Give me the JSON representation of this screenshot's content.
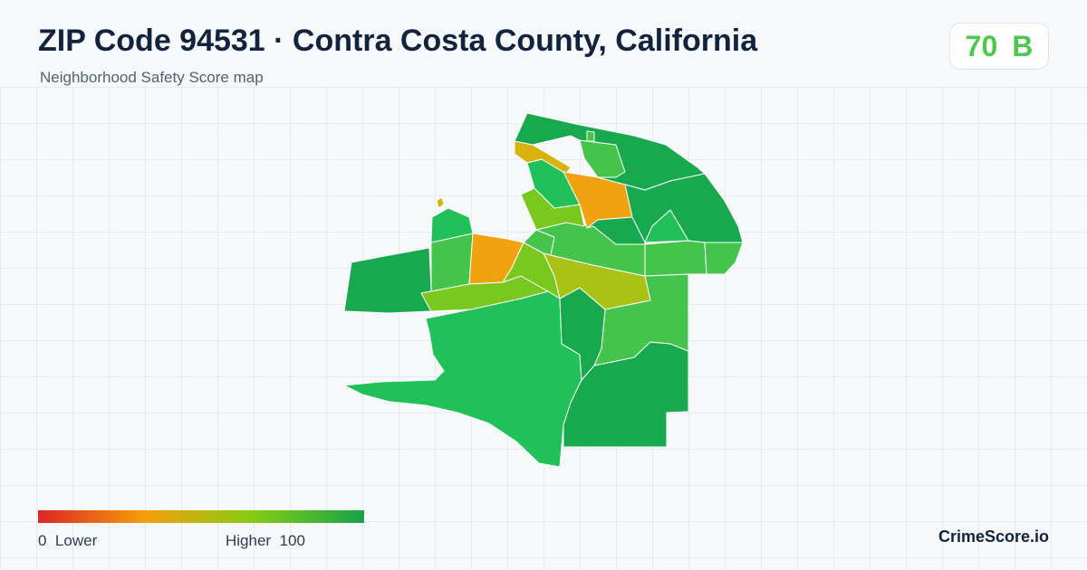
{
  "header": {
    "title": "ZIP Code 94531 · Contra Costa County, California",
    "subtitle": "Neighborhood Safety Score map"
  },
  "score": {
    "value": "70",
    "grade": "B",
    "color": "#4cc94c"
  },
  "legend": {
    "low_value": "0",
    "low_label": "Lower",
    "high_label": "Higher",
    "high_value": "100",
    "colors": [
      "#dc2626",
      "#f59e0b",
      "#84cc16",
      "#16a34a"
    ]
  },
  "footer": {
    "brand": "CrimeScore.io"
  },
  "palette": {
    "dark_green": "#18a94e",
    "green": "#21c15a",
    "light_green": "#44c44a",
    "yellow_green": "#79c81f",
    "olive": "#a9c213",
    "mustard": "#d8b20f",
    "orange": "#f0a30f"
  }
}
